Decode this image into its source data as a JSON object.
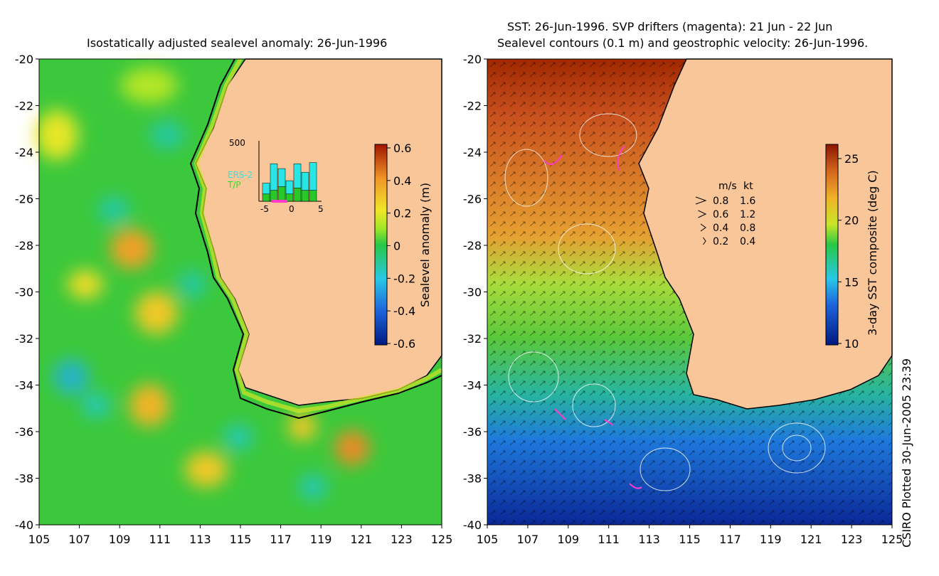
{
  "left_panel": {
    "title": "Isostatically adjusted sealevel anomaly: 26-Jun-1996",
    "colorbar_label": "Sealevel anomaly (m)",
    "colorbar_ticks": [
      "0.6",
      "0.4",
      "0.2",
      "0",
      "-0.2",
      "-0.4",
      "-0.6"
    ],
    "inset": {
      "y_max_label": "500",
      "legend": [
        "ERS-2",
        "T/P"
      ],
      "x_ticks": [
        "-5",
        "0",
        "5"
      ],
      "ers2_bars": [
        90,
        220,
        150,
        110,
        200,
        150,
        230
      ],
      "tp_bars": [
        60,
        90,
        120,
        60,
        110,
        90,
        90
      ]
    }
  },
  "right_panel": {
    "title_line1": "SST: 26-Jun-1996. SVP drifters (magenta): 21 Jun - 22 Jun",
    "title_line2": "Sealevel contours (0.1 m) and geostrophic velocity: 26-Jun-1996.",
    "colorbar_label": "3-day SST composite (deg C)",
    "colorbar_ticks": [
      "25",
      "20",
      "15",
      "10"
    ],
    "velocity_key": {
      "headers": [
        "m/s",
        "kt"
      ],
      "rows": [
        [
          "0.8",
          "1.6"
        ],
        [
          "0.6",
          "1.2"
        ],
        [
          "0.4",
          "0.8"
        ],
        [
          "0.2",
          "0.4"
        ]
      ]
    }
  },
  "axes": {
    "lat_ticks": [
      "-20",
      "-22",
      "-24",
      "-26",
      "-28",
      "-30",
      "-32",
      "-34",
      "-36",
      "-38",
      "-40"
    ],
    "lon_ticks": [
      "105",
      "107",
      "109",
      "111",
      "113",
      "115",
      "117",
      "119",
      "121",
      "123",
      "125"
    ]
  },
  "footer_stamp": "CSIRO Plotted 30-Jun-2005 23:39",
  "colors": {
    "land": "#f8c698",
    "ocean_mid": "#3cc83c",
    "coast": "#000000",
    "drifter": "#ff3cc8"
  }
}
